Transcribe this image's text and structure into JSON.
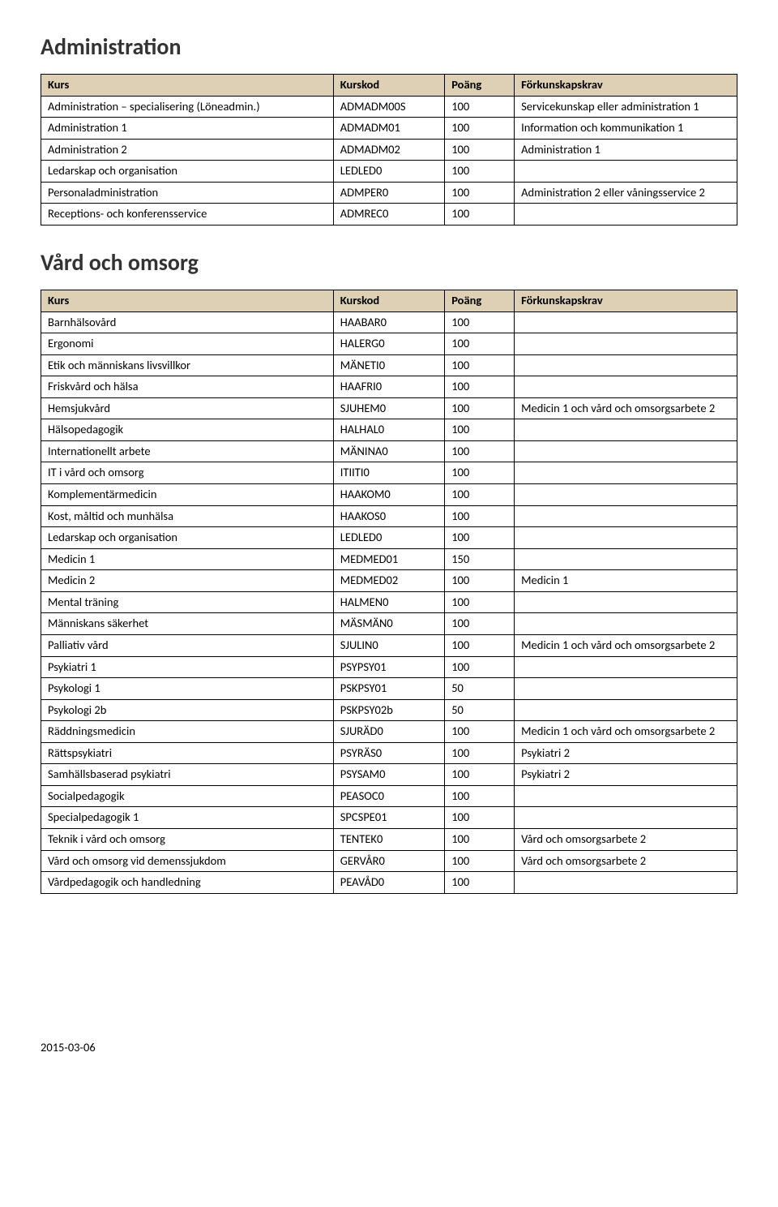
{
  "colors": {
    "header_bg": "#ddd0b4",
    "border": "#000000",
    "heading_text": "#333333",
    "body_text": "#000000",
    "page_bg": "#ffffff"
  },
  "fonts": {
    "heading_size_pt": 21,
    "body_size_pt": 11
  },
  "columns": {
    "kurs": "Kurs",
    "kurskod": "Kurskod",
    "poang": "Poäng",
    "forkunskapskrav": "Förkunskapskrav"
  },
  "section1": {
    "title": "Administration",
    "rows": [
      {
        "kurs": "Administration – specialisering (Löneadmin.)",
        "kod": "ADMADM00S",
        "poang": "100",
        "krav": "Servicekunskap eller administration 1"
      },
      {
        "kurs": "Administration 1",
        "kod": "ADMADM01",
        "poang": "100",
        "krav": "Information och kommunikation 1"
      },
      {
        "kurs": "Administration 2",
        "kod": "ADMADM02",
        "poang": "100",
        "krav": "Administration 1"
      },
      {
        "kurs": "Ledarskap och organisation",
        "kod": "LEDLED0",
        "poang": "100",
        "krav": ""
      },
      {
        "kurs": "Personaladministration",
        "kod": "ADMPER0",
        "poang": "100",
        "krav": "Administration 2 eller våningsservice 2"
      },
      {
        "kurs": "Receptions- och konferensservice",
        "kod": "ADMREC0",
        "poang": "100",
        "krav": ""
      }
    ]
  },
  "section2": {
    "title": "Vård och omsorg",
    "rows": [
      {
        "kurs": "Barnhälsovård",
        "kod": "HAABAR0",
        "poang": "100",
        "krav": ""
      },
      {
        "kurs": "Ergonomi",
        "kod": "HALERG0",
        "poang": "100",
        "krav": ""
      },
      {
        "kurs": "Etik och människans livsvillkor",
        "kod": "MÄNETI0",
        "poang": "100",
        "krav": ""
      },
      {
        "kurs": "Friskvård och hälsa",
        "kod": "HAAFRI0",
        "poang": "100",
        "krav": ""
      },
      {
        "kurs": "Hemsjukvård",
        "kod": "SJUHEM0",
        "poang": "100",
        "krav": "Medicin 1 och vård och omsorgsarbete 2"
      },
      {
        "kurs": "Hälsopedagogik",
        "kod": "HALHAL0",
        "poang": "100",
        "krav": ""
      },
      {
        "kurs": "Internationellt arbete",
        "kod": "MÄNINA0",
        "poang": "100",
        "krav": ""
      },
      {
        "kurs": "IT i vård och omsorg",
        "kod": "ITIITI0",
        "poang": "100",
        "krav": ""
      },
      {
        "kurs": "Komplementärmedicin",
        "kod": "HAAKOM0",
        "poang": "100",
        "krav": ""
      },
      {
        "kurs": "Kost, måltid och munhälsa",
        "kod": "HAAKOS0",
        "poang": "100",
        "krav": ""
      },
      {
        "kurs": "Ledarskap och organisation",
        "kod": "LEDLED0",
        "poang": "100",
        "krav": ""
      },
      {
        "kurs": "Medicin 1",
        "kod": "MEDMED01",
        "poang": "150",
        "krav": ""
      },
      {
        "kurs": "Medicin 2",
        "kod": "MEDMED02",
        "poang": "100",
        "krav": "Medicin 1"
      },
      {
        "kurs": "Mental träning",
        "kod": "HALMEN0",
        "poang": "100",
        "krav": ""
      },
      {
        "kurs": "Människans säkerhet",
        "kod": "MÄSMÄN0",
        "poang": "100",
        "krav": ""
      },
      {
        "kurs": "Palliativ vård",
        "kod": "SJULIN0",
        "poang": "100",
        "krav": "Medicin 1 och vård och omsorgsarbete 2"
      },
      {
        "kurs": "Psykiatri 1",
        "kod": "PSYPSY01",
        "poang": "100",
        "krav": ""
      },
      {
        "kurs": "Psykologi 1",
        "kod": "PSKPSY01",
        "poang": "50",
        "krav": ""
      },
      {
        "kurs": "Psykologi 2b",
        "kod": "PSKPSY02b",
        "poang": "50",
        "krav": ""
      },
      {
        "kurs": "Räddningsmedicin",
        "kod": "SJURÄD0",
        "poang": "100",
        "krav": "Medicin 1 och vård och omsorgsarbete 2"
      },
      {
        "kurs": "Rättspsykiatri",
        "kod": "PSYRÄS0",
        "poang": "100",
        "krav": "Psykiatri 2"
      },
      {
        "kurs": "Samhällsbaserad psykiatri",
        "kod": "PSYSAM0",
        "poang": "100",
        "krav": "Psykiatri 2"
      },
      {
        "kurs": "Socialpedagogik",
        "kod": "PEASOC0",
        "poang": "100",
        "krav": ""
      },
      {
        "kurs": "Specialpedagogik 1",
        "kod": "SPCSPE01",
        "poang": "100",
        "krav": ""
      },
      {
        "kurs": "Teknik i vård och omsorg",
        "kod": "TENTEK0",
        "poang": "100",
        "krav": "Vård och omsorgsarbete 2"
      },
      {
        "kurs": "Vård och omsorg vid demenssjukdom",
        "kod": "GERVÅR0",
        "poang": "100",
        "krav": "Vård och omsorgsarbete 2"
      },
      {
        "kurs": "Vårdpedagogik och handledning",
        "kod": "PEAVÅD0",
        "poang": "100",
        "krav": ""
      }
    ]
  },
  "footer": {
    "date": "2015-03-06"
  }
}
